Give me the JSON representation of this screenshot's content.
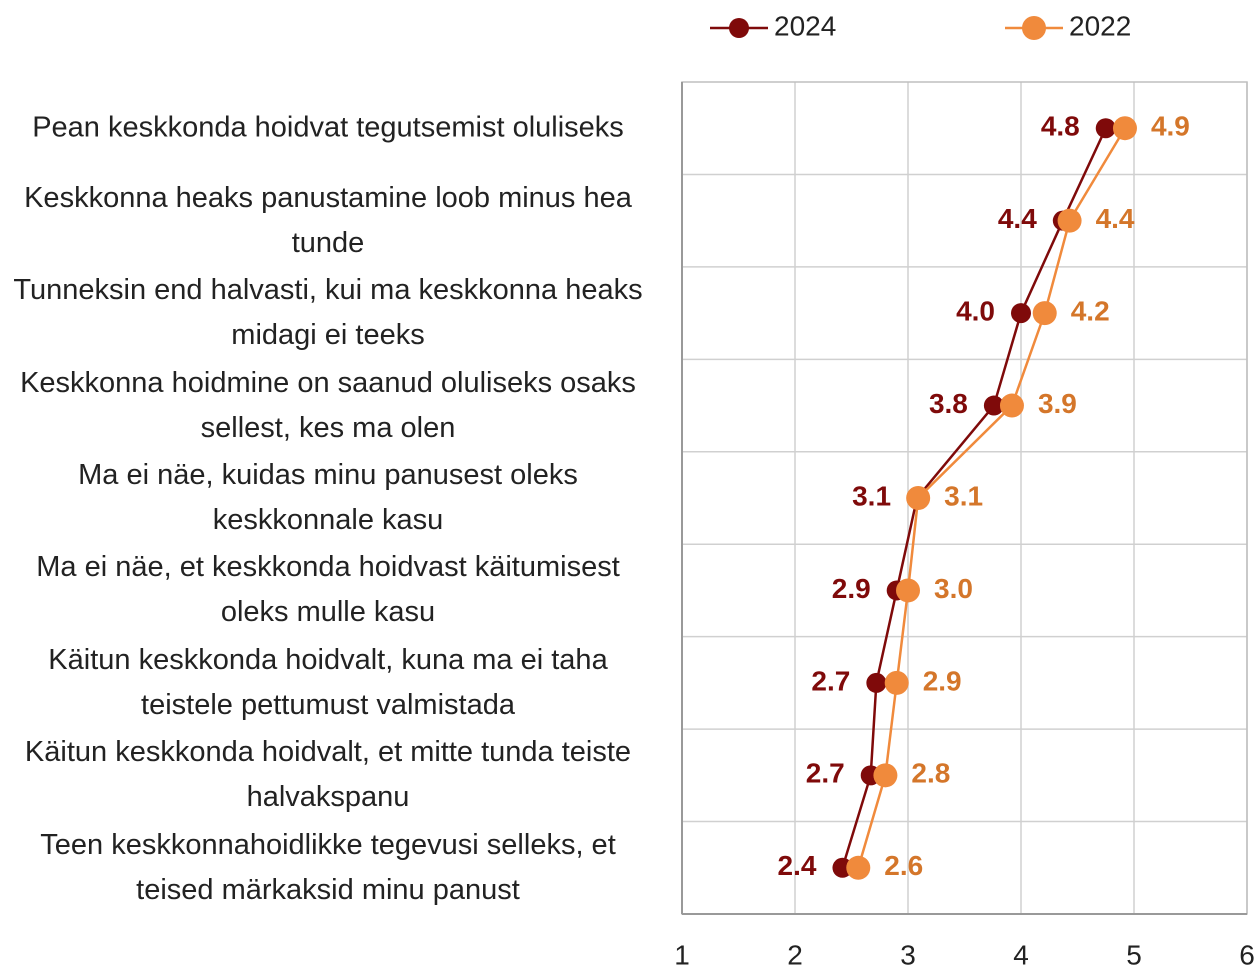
{
  "chart_data": {
    "type": "line",
    "orientation": "horizontal",
    "categories": [
      "Pean keskkonda hoidvat tegutsemist oluliseks",
      "Keskkonna heaks panustamine loob minus hea tunde",
      "Tunneksin end halvasti, kui ma keskkonna heaks midagi ei teeks",
      "Keskkonna hoidmine on saanud oluliseks osaks sellest, kes ma olen",
      "Ma ei näe, kuidas minu panusest oleks keskkonnale kasu",
      "Ma ei näe, et keskkonda hoidvast käitumisest oleks mulle kasu",
      "Käitun keskkonda hoidvalt, kuna ma ei taha teistele pettumust valmistada",
      "Käitun keskkonda hoidvalt, et mitte tunda teiste halvakspanu",
      "Teen keskkonnahoidlikke tegevusi selleks, et teised märkaksid minu panust"
    ],
    "series": [
      {
        "name": "2024",
        "color": "#7f0a0a",
        "label_color": "#7f0a0a",
        "values": [
          4.75,
          4.37,
          4.0,
          3.76,
          3.08,
          2.9,
          2.72,
          2.67,
          2.42
        ],
        "value_labels": [
          "4.8",
          "4.4",
          "4.0",
          "3.8",
          "3.1",
          "2.9",
          "2.7",
          "2.7",
          "2.4"
        ]
      },
      {
        "name": "2022",
        "color": "#f08a3c",
        "label_color": "#d4762a",
        "values": [
          4.92,
          4.43,
          4.21,
          3.92,
          3.09,
          3.0,
          2.9,
          2.8,
          2.56
        ],
        "value_labels": [
          "4.9",
          "4.4",
          "4.2",
          "3.9",
          "3.1",
          "3.0",
          "2.9",
          "2.8",
          "2.6"
        ]
      }
    ],
    "xlim": [
      1,
      6
    ],
    "xticks": [
      1,
      2,
      3,
      4,
      5,
      6
    ],
    "grid": true,
    "legend": "top"
  }
}
